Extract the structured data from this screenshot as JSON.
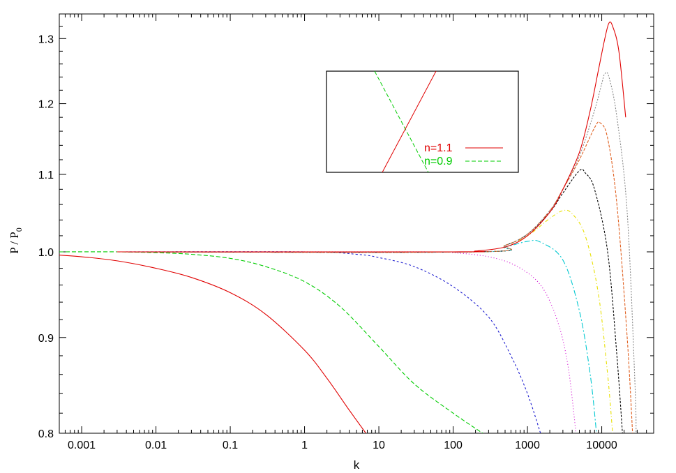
{
  "chart_data": {
    "type": "line",
    "xlabel": "k",
    "ylabel": {
      "base": "P / P",
      "sub": "0"
    },
    "x_scale": "log",
    "y_scale": "log",
    "xlim": [
      0.0005,
      50000
    ],
    "ylim": [
      0.8,
      1.34
    ],
    "x_ticks": [
      {
        "value": 0.001,
        "label": "0.001"
      },
      {
        "value": 0.01,
        "label": "0.01"
      },
      {
        "value": 0.1,
        "label": "0.1"
      },
      {
        "value": 1,
        "label": "1"
      },
      {
        "value": 10,
        "label": "10"
      },
      {
        "value": 100,
        "label": "100"
      },
      {
        "value": 1000,
        "label": "1000"
      },
      {
        "value": 10000,
        "label": "10000"
      }
    ],
    "y_ticks": [
      {
        "value": 0.8,
        "label": "0.8"
      },
      {
        "value": 0.9,
        "label": "0.9"
      },
      {
        "value": 1.0,
        "label": "1.0"
      },
      {
        "value": 1.1,
        "label": "1.1"
      },
      {
        "value": 1.2,
        "label": "1.2"
      },
      {
        "value": 1.3,
        "label": "1.3"
      }
    ],
    "grid": false,
    "legend_position": "top-center",
    "legend": [
      {
        "name": "n=1.1",
        "color": "#e00000",
        "dash": "solid"
      },
      {
        "name": "n=0.9",
        "color": "#00cc00",
        "dash": "6,3"
      }
    ],
    "series": [
      {
        "color": "#e00000",
        "dash": "",
        "points": [
          [
            0.0005,
            0.996
          ],
          [
            0.001,
            0.994
          ],
          [
            0.003,
            0.989
          ],
          [
            0.01,
            0.98
          ],
          [
            0.03,
            0.969
          ],
          [
            0.1,
            0.951
          ],
          [
            0.3,
            0.926
          ],
          [
            1,
            0.886
          ],
          [
            2,
            0.856
          ],
          [
            4,
            0.823
          ],
          [
            6.7,
            0.8
          ]
        ]
      },
      {
        "color": "#00cc00",
        "dash": "6,3",
        "points": [
          [
            0.0005,
            1.0
          ],
          [
            0.003,
            1.0
          ],
          [
            0.01,
            0.999
          ],
          [
            0.03,
            0.997
          ],
          [
            0.1,
            0.992
          ],
          [
            0.3,
            0.982
          ],
          [
            1,
            0.964
          ],
          [
            3,
            0.935
          ],
          [
            10,
            0.89
          ],
          [
            30,
            0.85
          ],
          [
            100,
            0.82
          ],
          [
            250,
            0.8
          ]
        ]
      },
      {
        "color": "#2020d0",
        "dash": "3,3",
        "points": [
          [
            0.003,
            1.0
          ],
          [
            1,
            1.0
          ],
          [
            5,
            0.997
          ],
          [
            10,
            0.993
          ],
          [
            30,
            0.982
          ],
          [
            100,
            0.958
          ],
          [
            300,
            0.923
          ],
          [
            600,
            0.88
          ],
          [
            1000,
            0.84
          ],
          [
            1500,
            0.8
          ]
        ]
      },
      {
        "color": "#d000d0",
        "dash": "1,3",
        "points": [
          [
            0.003,
            1.0
          ],
          [
            50,
            1.0
          ],
          [
            100,
            0.999
          ],
          [
            300,
            0.994
          ],
          [
            700,
            0.983
          ],
          [
            1500,
            0.96
          ],
          [
            2500,
            0.92
          ],
          [
            3500,
            0.87
          ],
          [
            4500,
            0.8
          ]
        ]
      },
      {
        "color": "#00c8d0",
        "dash": "8,3,2,3",
        "points": [
          [
            0.003,
            1.0
          ],
          [
            200,
            1.0
          ],
          [
            500,
            1.006
          ],
          [
            1000,
            1.013
          ],
          [
            1500,
            1.012
          ],
          [
            3000,
            0.99
          ],
          [
            5000,
            0.93
          ],
          [
            7000,
            0.86
          ],
          [
            8500,
            0.8
          ]
        ]
      },
      {
        "color": "#e8e000",
        "dash": "5,3,1,3",
        "points": [
          [
            0.003,
            1.0
          ],
          [
            200,
            1.0
          ],
          [
            500,
            1.008
          ],
          [
            1000,
            1.02
          ],
          [
            2000,
            1.042
          ],
          [
            3000,
            1.052
          ],
          [
            4000,
            1.048
          ],
          [
            6000,
            1.02
          ],
          [
            9000,
            0.95
          ],
          [
            12000,
            0.86
          ],
          [
            14000,
            0.8
          ]
        ]
      },
      {
        "color": "#000000",
        "dash": "3,2",
        "points": [
          [
            0.003,
            1.0
          ],
          [
            200,
            1.0
          ],
          [
            500,
            1.008
          ],
          [
            1000,
            1.022
          ],
          [
            2000,
            1.05
          ],
          [
            3000,
            1.075
          ],
          [
            5000,
            1.105
          ],
          [
            6000,
            1.102
          ],
          [
            8000,
            1.08
          ],
          [
            12000,
            1.0
          ],
          [
            16000,
            0.88
          ],
          [
            19000,
            0.8
          ]
        ]
      },
      {
        "color": "#e06020",
        "dash": "4,2",
        "points": [
          [
            0.003,
            1.0
          ],
          [
            200,
            1.0
          ],
          [
            500,
            1.008
          ],
          [
            1000,
            1.022
          ],
          [
            2000,
            1.052
          ],
          [
            3000,
            1.08
          ],
          [
            5000,
            1.12
          ],
          [
            8000,
            1.165
          ],
          [
            9500,
            1.172
          ],
          [
            12000,
            1.15
          ],
          [
            16000,
            1.06
          ],
          [
            22000,
            0.9
          ],
          [
            26000,
            0.8
          ]
        ]
      },
      {
        "color": "#888888",
        "dash": "2,2",
        "points": [
          [
            0.003,
            1.0
          ],
          [
            200,
            1.0
          ],
          [
            500,
            1.008
          ],
          [
            1000,
            1.022
          ],
          [
            2000,
            1.052
          ],
          [
            3000,
            1.08
          ],
          [
            5000,
            1.125
          ],
          [
            8000,
            1.19
          ],
          [
            10000,
            1.23
          ],
          [
            11000,
            1.245
          ],
          [
            12500,
            1.24
          ],
          [
            16000,
            1.18
          ],
          [
            22000,
            1.05
          ],
          [
            28000,
            0.85
          ],
          [
            29000,
            0.8
          ]
        ]
      },
      {
        "color": "#e00000",
        "dash": "",
        "points": [
          [
            0.003,
            1.0
          ],
          [
            100,
            1.0
          ],
          [
            200,
            1.001
          ],
          [
            500,
            1.006
          ],
          [
            1000,
            1.02
          ],
          [
            2000,
            1.05
          ],
          [
            3000,
            1.08
          ],
          [
            5000,
            1.13
          ],
          [
            7000,
            1.19
          ],
          [
            9000,
            1.25
          ],
          [
            11000,
            1.3
          ],
          [
            12500,
            1.325
          ],
          [
            14000,
            1.32
          ],
          [
            17000,
            1.28
          ],
          [
            21000,
            1.18
          ]
        ]
      }
    ]
  }
}
